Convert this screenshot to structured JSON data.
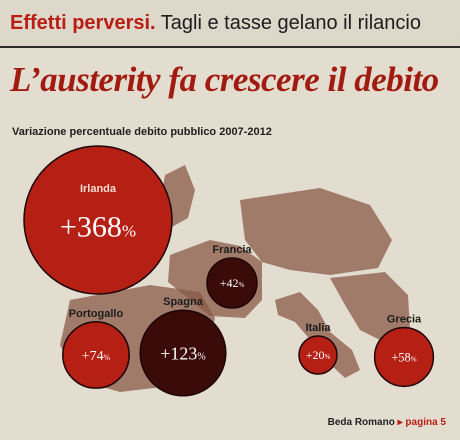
{
  "kicker": {
    "strong": "Effetti perversi.",
    "rest": " Tagli e tasse gelano il rilancio"
  },
  "headline": "L’austerity fa crescere il debito",
  "credit": {
    "author": "Beda Romano",
    "arrow": "▸",
    "page": "pagina 5"
  },
  "colors": {
    "bubble_red": "#b51f14",
    "bubble_dark": "#3a0b08",
    "map": "#8a5a48",
    "accent": "#b81e14"
  },
  "chart_data": {
    "type": "bubble",
    "title": "Variazione percentuale debito pubblico 2007-2012",
    "unit": "%",
    "categories": [
      "Irlanda",
      "Francia",
      "Portogallo",
      "Spagna",
      "Italia",
      "Grecia"
    ],
    "values": [
      368,
      42,
      74,
      123,
      20,
      58
    ],
    "labels": [
      "+368",
      "+42",
      "+74",
      "+123",
      "+20",
      "+58"
    ]
  }
}
